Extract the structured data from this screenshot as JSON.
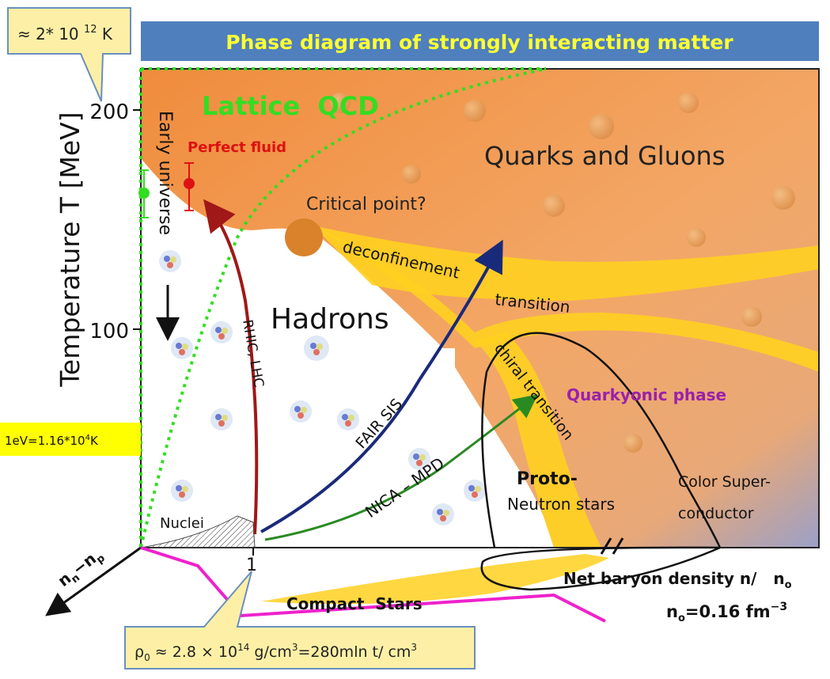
{
  "title": "Phase diagram of strongly interacting matter",
  "temp_callout": "≈ 2* 10 ",
  "temp_callout_exp": "12",
  "temp_callout_unit": " K",
  "ev_box": {
    "main": "1eV=1.16*10",
    "exp": "4",
    "unit": "K"
  },
  "density_callout": {
    "p1": "ρ",
    "sub": "0",
    "p2": " ≈ 2.8 × 10",
    "sup1": "14",
    "p3": " g/cm",
    "sup2": "3",
    "p4": "=280mln t/ cm",
    "sup3": "3"
  },
  "y_axis": {
    "label": "Temperature T [MeV]",
    "ticks": [
      {
        "value": 200,
        "label": "200"
      },
      {
        "value": 100,
        "label": "100"
      }
    ]
  },
  "x_axis": {
    "tick_label": "1",
    "label": "Net baryon density n/   n",
    "label_sub": "o",
    "n0_text_a": "n",
    "n0_sub": "o",
    "n0_text_b": "=0.16 fm",
    "n0_exp": "−3"
  },
  "left_axis_label": {
    "a": "n",
    "a_sub": "n",
    "dash": "−n",
    "b_sub": "p"
  },
  "labels": {
    "lattice": "Lattice  QCD",
    "perfect_fluid": "Perfect fluid",
    "early_universe": "Early universe",
    "quarks_gluons": "Quarks and Gluons",
    "critical_point": "Critical point?",
    "deconfinement": "deconfinement",
    "transition": "transition",
    "hadrons": "Hadrons",
    "rhic": "RHIC, LHC",
    "chiral": "chiral transition",
    "quarkyonic": "Quarkyonic phase",
    "fair": "FAIR SIS",
    "nica": "NICA – MPD",
    "proto": "Proto-",
    "neutron_stars": "Neutron stars",
    "color_super_1": "Color Super-",
    "color_super_2": "conductor",
    "nuclei": "Nuclei",
    "compact_stars": "Compact  Stars"
  },
  "colors": {
    "title_bar": "#4f7fbd",
    "title_text": "#ffff33",
    "lattice": "#33dd22",
    "perfect_fluid": "#dd1111",
    "quarkyonic": "#9922aa",
    "callout_fill": "#fdf0a6",
    "ev_fill": "#ffff00",
    "qgp": "#ee9a55",
    "transition_band": "#ffd020"
  }
}
